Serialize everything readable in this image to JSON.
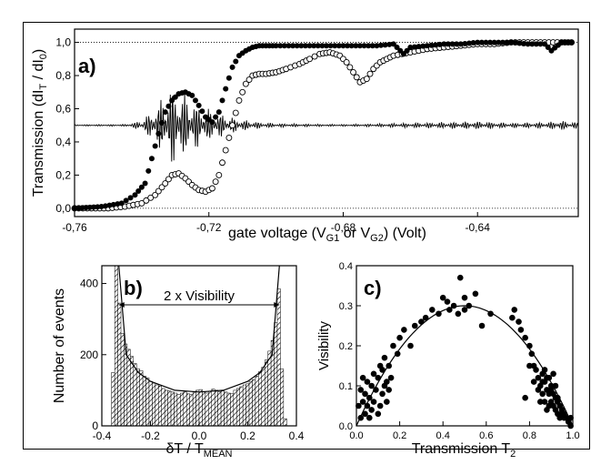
{
  "chart_data": [
    {
      "panel": "a)",
      "type": "scatter",
      "xlabel_main": "gate voltage (V",
      "xlabel_sub1": "G1",
      "xlabel_mid": " or V",
      "xlabel_sub2": "G2",
      "xlabel_end": ") (Volt)",
      "ylabel_main": "Transmission (dI",
      "ylabel_sub1": "T",
      "ylabel_mid": " / dI",
      "ylabel_sub2": "0",
      "ylabel_end": ")",
      "xlim": [
        -0.76,
        -0.61
      ],
      "ylim": [
        -0.05,
        1.08
      ],
      "xticks": [
        "-0,76",
        "-0,72",
        "-0,68",
        "-0,64"
      ],
      "xtick_values": [
        -0.76,
        -0.72,
        -0.68,
        -0.64
      ],
      "yticks": [
        "0,0",
        "0,2",
        "0,4",
        "0,6",
        "0,8",
        "1,0"
      ],
      "ytick_values": [
        0.0,
        0.2,
        0.4,
        0.6,
        0.8,
        1.0
      ],
      "reference_lines": [
        0.0,
        1.0
      ],
      "series": [
        {
          "marker": "filled-circle",
          "x": [
            -0.76,
            -0.752,
            -0.746,
            -0.742,
            -0.739,
            -0.737,
            -0.735,
            -0.733,
            -0.731,
            -0.729,
            -0.727,
            -0.725,
            -0.723,
            -0.721,
            -0.719,
            -0.717,
            -0.715,
            -0.713,
            -0.711,
            -0.709,
            -0.707,
            -0.705,
            -0.703,
            -0.7,
            -0.695,
            -0.69,
            -0.68,
            -0.67,
            -0.665,
            -0.662,
            -0.66,
            -0.655,
            -0.65,
            -0.645,
            -0.64,
            -0.635,
            -0.63,
            -0.625,
            -0.62,
            -0.618,
            -0.615,
            -0.612
          ],
          "y": [
            0.0,
            0.01,
            0.03,
            0.08,
            0.15,
            0.3,
            0.45,
            0.58,
            0.65,
            0.69,
            0.7,
            0.68,
            0.62,
            0.55,
            0.52,
            0.58,
            0.72,
            0.85,
            0.92,
            0.95,
            0.97,
            0.98,
            0.98,
            0.98,
            0.98,
            0.98,
            0.98,
            0.98,
            0.99,
            0.93,
            0.97,
            0.98,
            0.99,
            0.99,
            1.0,
            1.0,
            1.0,
            0.99,
            0.99,
            0.95,
            1.0,
            1.0
          ]
        },
        {
          "marker": "open-circle",
          "x": [
            -0.76,
            -0.75,
            -0.745,
            -0.74,
            -0.736,
            -0.733,
            -0.731,
            -0.729,
            -0.727,
            -0.725,
            -0.723,
            -0.721,
            -0.719,
            -0.717,
            -0.715,
            -0.713,
            -0.711,
            -0.709,
            -0.707,
            -0.705,
            -0.703,
            -0.7,
            -0.697,
            -0.693,
            -0.69,
            -0.687,
            -0.684,
            -0.681,
            -0.679,
            -0.677,
            -0.675,
            -0.673,
            -0.671,
            -0.669,
            -0.667,
            -0.665,
            -0.66,
            -0.655,
            -0.65,
            -0.645,
            -0.64,
            -0.635,
            -0.63,
            -0.625,
            -0.62,
            -0.615,
            -0.612
          ],
          "y": [
            0.0,
            0.0,
            0.01,
            0.03,
            0.08,
            0.15,
            0.2,
            0.21,
            0.18,
            0.14,
            0.11,
            0.1,
            0.12,
            0.2,
            0.35,
            0.5,
            0.65,
            0.75,
            0.8,
            0.81,
            0.81,
            0.82,
            0.84,
            0.87,
            0.9,
            0.93,
            0.94,
            0.92,
            0.88,
            0.82,
            0.76,
            0.78,
            0.84,
            0.88,
            0.9,
            0.92,
            0.94,
            0.96,
            0.97,
            0.98,
            0.99,
            0.99,
            1.0,
            1.0,
            1.0,
            1.0,
            1.0
          ]
        },
        {
          "marker": "line",
          "baseline": 0.5,
          "x": [
            -0.76,
            -0.745,
            -0.74,
            -0.737,
            -0.734,
            -0.731,
            -0.728,
            -0.725,
            -0.722,
            -0.719,
            -0.716,
            -0.713,
            -0.71,
            -0.705,
            -0.7,
            -0.69,
            -0.68,
            -0.67,
            -0.66,
            -0.65,
            -0.64,
            -0.63,
            -0.62,
            -0.615,
            -0.612
          ],
          "amplitude": [
            0.004,
            0.006,
            0.03,
            0.09,
            0.17,
            0.25,
            0.21,
            0.16,
            0.12,
            0.09,
            0.07,
            0.05,
            0.035,
            0.02,
            0.012,
            0.008,
            0.006,
            0.01,
            0.015,
            0.02,
            0.025,
            0.015,
            0.02,
            0.03,
            0.02
          ]
        }
      ]
    },
    {
      "panel": "b)",
      "type": "bar",
      "xlabel_main": "δT / T",
      "xlabel_sub": "MEAN",
      "ylabel": "Number of events",
      "xlim": [
        -0.4,
        0.4
      ],
      "ylim": [
        0,
        450
      ],
      "xticks": [
        "-0.4",
        "-0.2",
        "0.0",
        "0.2",
        "0.4"
      ],
      "xtick_values": [
        -0.4,
        -0.2,
        0.0,
        0.2,
        0.4
      ],
      "yticks": [
        "0",
        "200",
        "400"
      ],
      "ytick_values": [
        0,
        200,
        400
      ],
      "annotation": "2 x Visibility",
      "annotation_range": [
        -0.33,
        0.33
      ],
      "annotation_y": 340,
      "bin_start": -0.36,
      "bin_width": 0.02,
      "values": [
        150,
        450,
        345,
        260,
        230,
        215,
        195,
        175,
        160,
        155,
        140,
        135,
        125,
        120,
        115,
        112,
        105,
        100,
        98,
        95,
        92,
        88,
        92,
        95,
        90,
        88,
        95,
        100,
        102,
        96,
        92,
        97,
        103,
        100,
        96,
        98,
        95,
        92,
        90,
        100,
        105,
        110,
        115,
        118,
        125,
        130,
        140,
        152,
        165,
        185,
        210,
        240,
        290,
        385,
        160,
        20
      ],
      "fit_curve": {
        "x": [
          -0.33,
          -0.3,
          -0.25,
          -0.2,
          -0.1,
          0.0,
          0.1,
          0.2,
          0.25,
          0.3,
          0.33
        ],
        "y": [
          450,
          200,
          150,
          125,
          100,
          95,
          100,
          125,
          150,
          200,
          450
        ]
      }
    },
    {
      "panel": "c)",
      "type": "scatter",
      "xlabel_main": "Transmission T",
      "xlabel_sub": "2",
      "ylabel": "Visibility",
      "xlim": [
        0.0,
        1.0
      ],
      "ylim": [
        0.0,
        0.4
      ],
      "xticks": [
        "0.0",
        "0.2",
        "0.4",
        "0.6",
        "0.8",
        "1.0"
      ],
      "xtick_values": [
        0.0,
        0.2,
        0.4,
        0.6,
        0.8,
        1.0
      ],
      "yticks": [
        "0.0",
        "0.1",
        "0.2",
        "0.3",
        "0.4"
      ],
      "ytick_values": [
        0.0,
        0.1,
        0.2,
        0.3,
        0.4
      ],
      "x": [
        0.01,
        0.02,
        0.02,
        0.03,
        0.03,
        0.04,
        0.04,
        0.05,
        0.05,
        0.06,
        0.06,
        0.07,
        0.07,
        0.08,
        0.08,
        0.09,
        0.1,
        0.1,
        0.11,
        0.11,
        0.12,
        0.12,
        0.13,
        0.13,
        0.14,
        0.14,
        0.15,
        0.15,
        0.16,
        0.17,
        0.19,
        0.2,
        0.22,
        0.25,
        0.27,
        0.3,
        0.32,
        0.35,
        0.38,
        0.4,
        0.42,
        0.43,
        0.45,
        0.47,
        0.48,
        0.5,
        0.5,
        0.52,
        0.55,
        0.58,
        0.62,
        0.72,
        0.73,
        0.75,
        0.76,
        0.78,
        0.8,
        0.81,
        0.82,
        0.83,
        0.84,
        0.85,
        0.86,
        0.86,
        0.87,
        0.87,
        0.88,
        0.88,
        0.89,
        0.89,
        0.9,
        0.9,
        0.91,
        0.91,
        0.92,
        0.92,
        0.93,
        0.93,
        0.94,
        0.94,
        0.95,
        0.95,
        0.96,
        0.96,
        0.97,
        0.98,
        0.99,
        0.99,
        0.86,
        0.88,
        0.9,
        0.92,
        0.85,
        0.87,
        0.89,
        0.91,
        0.93,
        0.95,
        0.84,
        0.82,
        0.8,
        0.78
      ],
      "y": [
        0.05,
        0.02,
        0.09,
        0.06,
        0.12,
        0.03,
        0.08,
        0.05,
        0.11,
        0.02,
        0.07,
        0.04,
        0.1,
        0.06,
        0.13,
        0.09,
        0.03,
        0.12,
        0.05,
        0.15,
        0.08,
        0.14,
        0.1,
        0.17,
        0.06,
        0.11,
        0.09,
        0.15,
        0.12,
        0.2,
        0.18,
        0.22,
        0.24,
        0.2,
        0.25,
        0.26,
        0.27,
        0.29,
        0.28,
        0.32,
        0.31,
        0.29,
        0.3,
        0.28,
        0.37,
        0.32,
        0.29,
        0.3,
        0.33,
        0.25,
        0.28,
        0.27,
        0.29,
        0.26,
        0.24,
        0.22,
        0.2,
        0.18,
        0.15,
        0.14,
        0.12,
        0.1,
        0.13,
        0.08,
        0.11,
        0.06,
        0.09,
        0.04,
        0.08,
        0.12,
        0.06,
        0.1,
        0.05,
        0.08,
        0.04,
        0.07,
        0.03,
        0.06,
        0.02,
        0.05,
        0.03,
        0.04,
        0.02,
        0.03,
        0.02,
        0.01,
        0.02,
        0.0,
        0.11,
        0.12,
        0.09,
        0.1,
        0.06,
        0.14,
        0.05,
        0.13,
        0.07,
        0.04,
        0.09,
        0.11,
        0.15,
        0.07
      ],
      "fit_curve": "parabola 4*0.3*T*(1-T)"
    }
  ]
}
